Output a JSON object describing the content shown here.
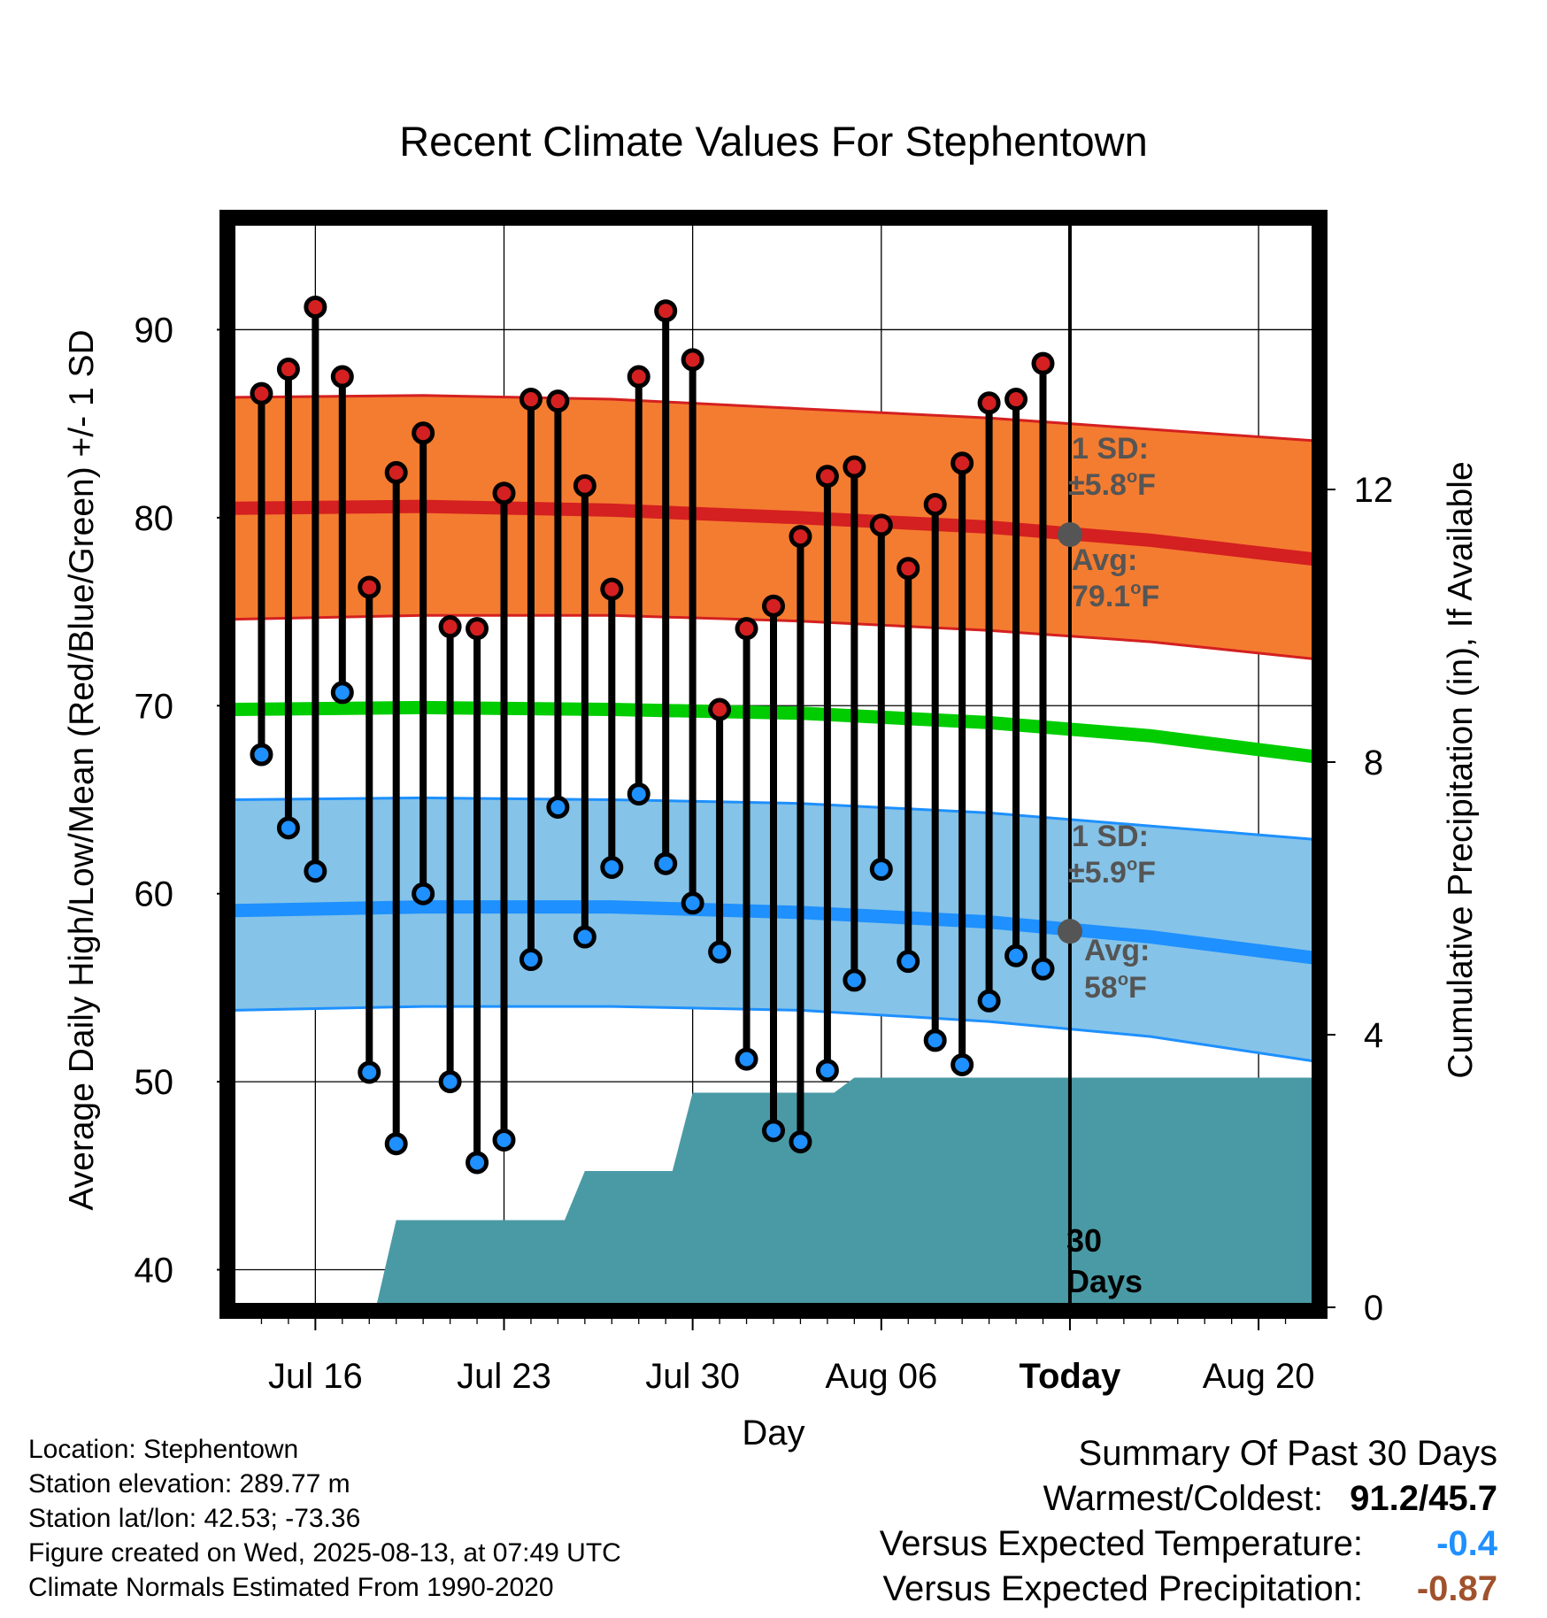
{
  "colors": {
    "high_band": "#f47c30",
    "high_edge": "#d42020",
    "high_mean": "#d42020",
    "low_band": "#85c3e8",
    "low_edge": "#1e90ff",
    "low_mean": "#1e90ff",
    "mean_line": "#00cc00",
    "precip_fill": "#4a9aa5",
    "high_dot": "#d42020",
    "low_dot": "#1e90ff",
    "annotation_text": "#555555",
    "today_marker": "#555555",
    "temp_anomaly": "#1e90ff",
    "precip_anomaly": "#a0522d"
  },
  "chart_data": {
    "type": "line",
    "title": "Recent Climate Values For Stephentown",
    "xlabel": "Day",
    "ylabel": "Average Daily High/Low/Mean (Red/Blue/Green) +/- 1 SD",
    "y2label": "Cumulative Precipitation (in), If Available",
    "x_range": [
      "2025-07-13",
      "2025-08-22"
    ],
    "ylim": [
      38,
      96
    ],
    "y_ticks": [
      40,
      50,
      60,
      70,
      80,
      90
    ],
    "y2lim": [
      0,
      16
    ],
    "y2_ticks": [
      0,
      4,
      8,
      12
    ],
    "x_ticks": [
      {
        "date": "2025-07-16",
        "label": "Jul 16"
      },
      {
        "date": "2025-07-23",
        "label": "Jul 23"
      },
      {
        "date": "2025-07-30",
        "label": "Jul 30"
      },
      {
        "date": "2025-08-06",
        "label": "Aug 06"
      },
      {
        "date": "2025-08-13",
        "label": "Today"
      },
      {
        "date": "2025-08-20",
        "label": "Aug 20"
      }
    ],
    "today": "2025-08-13",
    "grid": true,
    "normals": {
      "dates": [
        "2025-07-13",
        "2025-07-20",
        "2025-07-27",
        "2025-08-03",
        "2025-08-10",
        "2025-08-16",
        "2025-08-22"
      ],
      "high_mean": [
        80.5,
        80.6,
        80.4,
        80.0,
        79.5,
        78.8,
        77.8
      ],
      "high_upper": [
        86.4,
        86.5,
        86.3,
        85.8,
        85.3,
        84.7,
        84.1
      ],
      "high_lower": [
        74.6,
        74.8,
        74.8,
        74.5,
        74.0,
        73.4,
        72.5
      ],
      "mean": [
        69.8,
        69.9,
        69.8,
        69.6,
        69.1,
        68.4,
        67.3
      ],
      "low_mean": [
        59.1,
        59.3,
        59.3,
        59.0,
        58.5,
        57.7,
        56.6
      ],
      "low_upper": [
        65.0,
        65.1,
        65.0,
        64.8,
        64.3,
        63.6,
        62.9
      ],
      "low_lower": [
        53.8,
        54.0,
        54.0,
        53.8,
        53.2,
        52.4,
        51.1
      ]
    },
    "series": [
      {
        "name": "High",
        "values": [
          86.6,
          87.9,
          91.2,
          87.5,
          76.3,
          82.4,
          84.5,
          74.2,
          74.1,
          81.3,
          86.3,
          86.2,
          81.7,
          76.2,
          87.5,
          91.0,
          88.4,
          69.8,
          74.1,
          75.3,
          79.0,
          82.2,
          82.7,
          79.6,
          77.3,
          80.7,
          82.9,
          86.1,
          86.3,
          88.2
        ]
      },
      {
        "name": "Low",
        "values": [
          67.4,
          63.5,
          61.2,
          70.7,
          50.5,
          46.7,
          60.0,
          50.0,
          45.7,
          46.9,
          56.5,
          64.6,
          57.7,
          61.4,
          65.3,
          61.6,
          59.5,
          56.9,
          51.2,
          47.4,
          46.8,
          50.6,
          55.4,
          61.3,
          56.4,
          52.2,
          50.9,
          54.3,
          56.7,
          56.0
        ]
      },
      {
        "name": "Cumulative Precipitation",
        "values": [
          0,
          0,
          0,
          0,
          0,
          0,
          1.28,
          1.28,
          1.28,
          1.28,
          1.28,
          1.28,
          1.28,
          2.0,
          2.0,
          2.0,
          2.0,
          3.15,
          3.15,
          3.15,
          3.15,
          3.15,
          3.15,
          3.37,
          3.37,
          3.37,
          3.37,
          3.37,
          3.37,
          3.37,
          3.37
        ]
      }
    ],
    "series_dates": {
      "start": "2025-07-14",
      "count": 30
    },
    "precip_dates": {
      "start": "2025-07-13",
      "count": 31
    },
    "precip_extends_to": "2025-08-22",
    "annotations": {
      "high_sd_label": "1 SD:",
      "high_sd_value": "±5.8",
      "high_avg_label": "Avg:",
      "high_avg_value": "79.1",
      "low_sd_label": "1 SD:",
      "low_sd_value": "±5.9",
      "low_avg_label": "Avg:",
      "low_avg_value": "58",
      "degree_sup": "o",
      "unit": "F",
      "days_line1": "30",
      "days_line2": "Days",
      "today_high_avg": 79.1,
      "today_low_avg": 58.0
    }
  },
  "info": {
    "location": "Location: Stephentown",
    "elevation": "Station elevation: 289.77 m",
    "latlon": "Station lat/lon: 42.53; -73.36",
    "created": "Figure created on Wed, 2025-08-13, at 07:49 UTC",
    "normals": "Climate Normals Estimated From 1990-2020"
  },
  "summary": {
    "title": "Summary Of Past 30 Days",
    "warmest_coldest_label": "Warmest/Coldest:",
    "warmest_coldest_value": "91.2/45.7",
    "temp_label": "Versus Expected Temperature:",
    "temp_value": "-0.4",
    "precip_label": "Versus Expected Precipitation:",
    "precip_value": "-0.87"
  }
}
